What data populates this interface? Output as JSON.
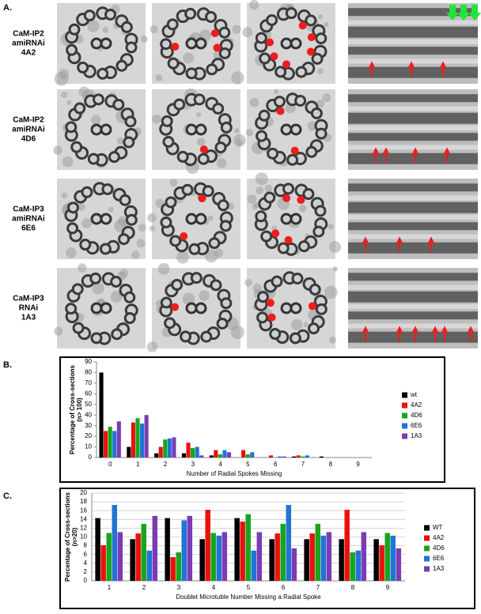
{
  "panel_labels": [
    "A.",
    "B.",
    "C."
  ],
  "rows": [
    [
      "CaM-IP2",
      "amiRNAi",
      "4A2"
    ],
    [
      "CaM-IP2",
      "amiRNAi",
      "4D6"
    ],
    [
      "CaM-IP3",
      "amiRNAi",
      "6E6"
    ],
    [
      "CaM-IP3",
      "RNAi",
      "1A3"
    ]
  ],
  "chart_data": [
    {
      "type": "bar",
      "xlabel": "Number of Radial Spokes Missing",
      "ylabel": [
        "Percentage of Cross-sections",
        "(n> 100)"
      ],
      "categories": [
        "0",
        "1",
        "2",
        "3",
        "4",
        "5",
        "6",
        "7",
        "8",
        "9"
      ],
      "series": [
        {
          "name": "wt",
          "color": "#000000",
          "values": [
            80,
            10,
            4,
            4,
            2,
            0,
            0,
            1,
            1,
            0
          ]
        },
        {
          "name": "4A2",
          "color": "#e8120c",
          "values": [
            25,
            33,
            10,
            14,
            7,
            7,
            2,
            2,
            0,
            0
          ]
        },
        {
          "name": "4D6",
          "color": "#17a51d",
          "values": [
            29,
            37,
            17,
            9,
            3,
            3,
            0,
            1,
            0,
            0
          ]
        },
        {
          "name": "6E6",
          "color": "#1f74d6",
          "values": [
            25,
            32,
            18,
            10,
            7,
            5,
            1,
            2,
            0,
            0
          ]
        },
        {
          "name": "1A3",
          "color": "#7b3bb3",
          "values": [
            34,
            40,
            19,
            2,
            5,
            0,
            1,
            0,
            0,
            0
          ]
        }
      ],
      "ylim": [
        0,
        90
      ],
      "yticks": [
        0,
        10,
        20,
        30,
        40,
        50,
        60,
        70,
        80,
        90
      ],
      "grid": false,
      "legend": "right"
    },
    {
      "type": "bar",
      "xlabel": "Doublet Microtuble Number Missing a Radial Spoke",
      "ylabel": [
        "Percentage of Cross-sections",
        "(n>20)"
      ],
      "categories": [
        "1",
        "2",
        "3",
        "4",
        "5",
        "6",
        "7",
        "8",
        "9"
      ],
      "series": [
        {
          "name": "WT",
          "color": "#000000",
          "values": [
            14.3,
            9.5,
            14.3,
            9.5,
            14.3,
            9.5,
            9.5,
            9.5,
            9.5
          ]
        },
        {
          "name": "4A2",
          "color": "#e8120c",
          "values": [
            8.1,
            10.8,
            5.4,
            16.2,
            13.5,
            10.8,
            10.8,
            16.2,
            8.1
          ]
        },
        {
          "name": "4D6",
          "color": "#17a51d",
          "values": [
            10.9,
            13.0,
            6.5,
            10.9,
            15.2,
            13.0,
            13.0,
            6.5,
            10.9
          ]
        },
        {
          "name": "6E6",
          "color": "#1f74d6",
          "values": [
            17.3,
            6.9,
            13.8,
            10.3,
            6.9,
            17.3,
            10.3,
            6.9,
            10.3
          ]
        },
        {
          "name": "1A3",
          "color": "#7b3bb3",
          "values": [
            11.1,
            14.8,
            14.8,
            11.1,
            11.1,
            7.4,
            11.1,
            11.1,
            7.4
          ]
        }
      ],
      "ylim": [
        0,
        20
      ],
      "yticks": [
        0,
        2,
        4,
        6,
        8,
        10,
        12,
        14,
        16,
        18,
        20
      ],
      "grid": true,
      "legend": "right"
    }
  ]
}
